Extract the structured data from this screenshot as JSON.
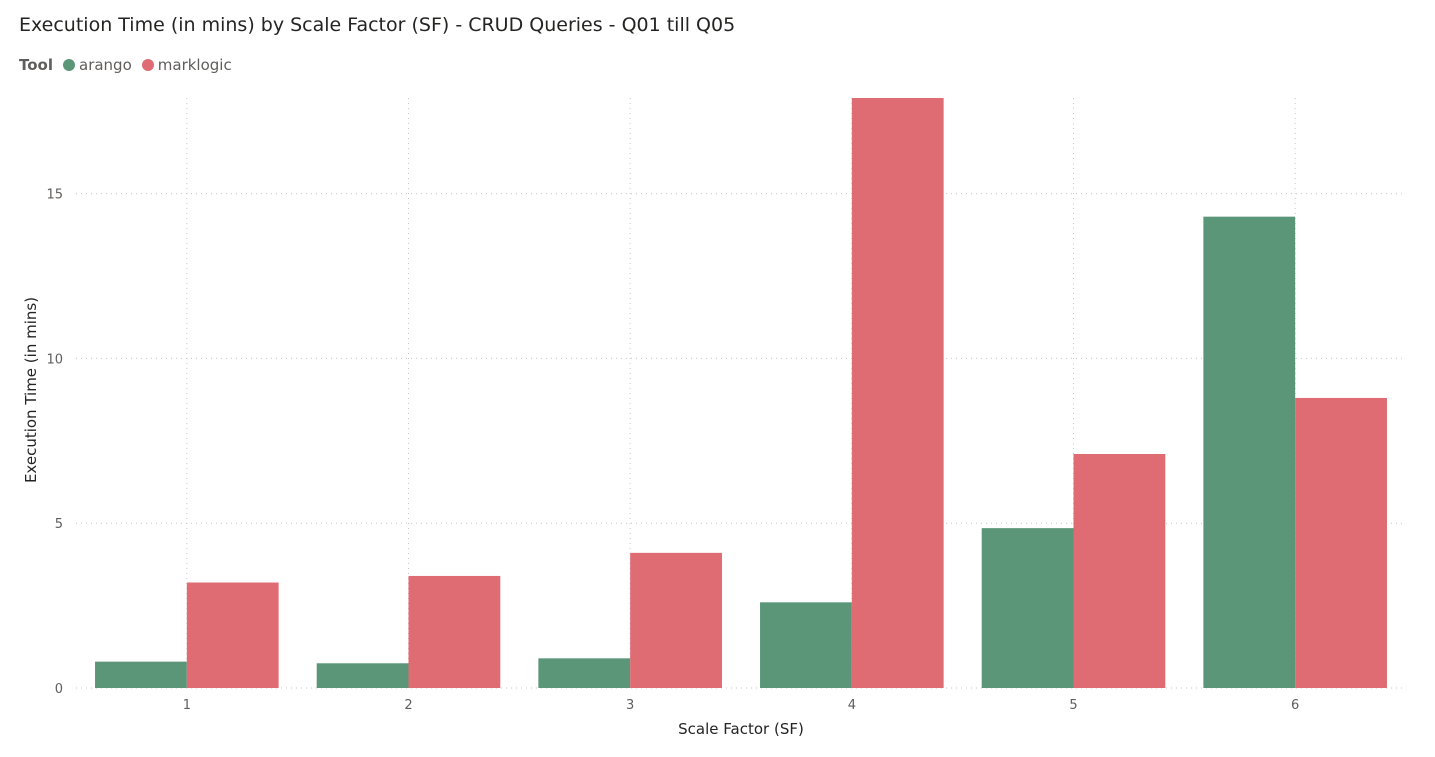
{
  "chart_data": {
    "type": "bar",
    "title": "Execution Time (in mins) by Scale Factor (SF) - CRUD Queries - Q01 till Q05",
    "legend_title": "Tool",
    "legend_position": "top-left",
    "xlabel": "Scale Factor (SF)",
    "ylabel": "Execution Time (in mins)",
    "categories": [
      "1",
      "2",
      "3",
      "4",
      "5",
      "6"
    ],
    "ylim": [
      0,
      17.9
    ],
    "yticks": [
      0,
      5,
      10,
      15
    ],
    "grid": true,
    "series": [
      {
        "name": "arango",
        "color": "#5c9679",
        "values": [
          0.8,
          0.75,
          0.9,
          2.6,
          4.85,
          14.3
        ]
      },
      {
        "name": "marklogic",
        "color": "#df6b73",
        "values": [
          3.2,
          3.4,
          4.1,
          17.9,
          7.1,
          8.8
        ]
      }
    ]
  }
}
